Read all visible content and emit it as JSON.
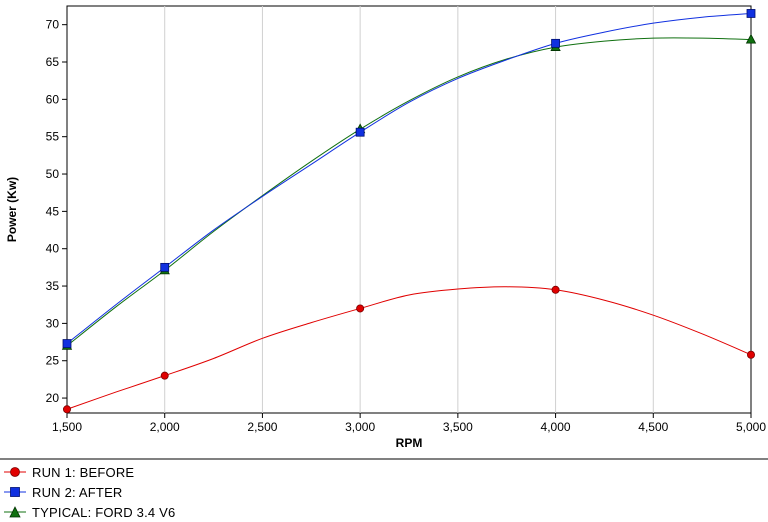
{
  "chart_data": {
    "type": "line",
    "xlabel": "RPM",
    "ylabel": "Power (Kw)",
    "xlim": [
      1500,
      5000
    ],
    "ylim": [
      18,
      72.5
    ],
    "x_ticks": [
      1500,
      2000,
      2500,
      3000,
      3500,
      4000,
      4500,
      5000
    ],
    "x_tick_labels": [
      "1,500",
      "2,000",
      "2,500",
      "3,000",
      "3,500",
      "4,000",
      "4,500",
      "5,000"
    ],
    "y_ticks": [
      20,
      25,
      30,
      35,
      40,
      45,
      50,
      55,
      60,
      65,
      70
    ],
    "y_tick_labels": [
      "20",
      "25",
      "30",
      "35",
      "40",
      "45",
      "50",
      "55",
      "60",
      "65",
      "70"
    ],
    "grid": "vertical",
    "legend_position": "bottom-left",
    "series": [
      {
        "name": "RUN 1: BEFORE",
        "color": "#e00000",
        "marker": "circle",
        "x": [
          1500,
          1750,
          2000,
          2250,
          2500,
          2750,
          3000,
          3250,
          3500,
          3750,
          4000,
          4250,
          4500,
          4750,
          5000
        ],
        "y": [
          18.5,
          20.8,
          23.0,
          25.3,
          28.0,
          30.1,
          32.0,
          33.8,
          34.6,
          34.9,
          34.5,
          33.1,
          31.1,
          28.6,
          25.8
        ],
        "marker_x": [
          1500,
          2000,
          3000,
          4000,
          5000
        ],
        "marker_y": [
          18.5,
          23.0,
          32.0,
          34.5,
          25.8
        ]
      },
      {
        "name": "RUN 2: AFTER",
        "color": "#1030e0",
        "marker": "square",
        "x": [
          1500,
          1750,
          2000,
          2250,
          2500,
          2750,
          3000,
          3250,
          3500,
          3750,
          4000,
          4250,
          4500,
          4750,
          5000
        ],
        "y": [
          27.3,
          32.5,
          37.5,
          42.5,
          47.0,
          51.3,
          55.6,
          59.6,
          62.8,
          65.3,
          67.5,
          69.0,
          70.2,
          71.0,
          71.5
        ],
        "marker_x": [
          1500,
          2000,
          3000,
          4000,
          5000
        ],
        "marker_y": [
          27.3,
          37.5,
          55.6,
          67.5,
          71.5
        ]
      },
      {
        "name": "TYPICAL: FORD 3.4 V6",
        "color": "#107010",
        "marker": "triangle",
        "x": [
          1500,
          1750,
          2000,
          2250,
          2500,
          2750,
          3000,
          3250,
          3500,
          3750,
          4000,
          4250,
          4500,
          4750,
          5000
        ],
        "y": [
          27.0,
          32.2,
          37.1,
          42.3,
          47.1,
          51.7,
          56.0,
          59.8,
          63.0,
          65.4,
          67.0,
          67.8,
          68.2,
          68.2,
          68.0
        ],
        "marker_x": [
          1500,
          2000,
          3000,
          4000,
          5000
        ],
        "marker_y": [
          27.0,
          37.1,
          56.0,
          67.0,
          68.0
        ]
      }
    ]
  }
}
